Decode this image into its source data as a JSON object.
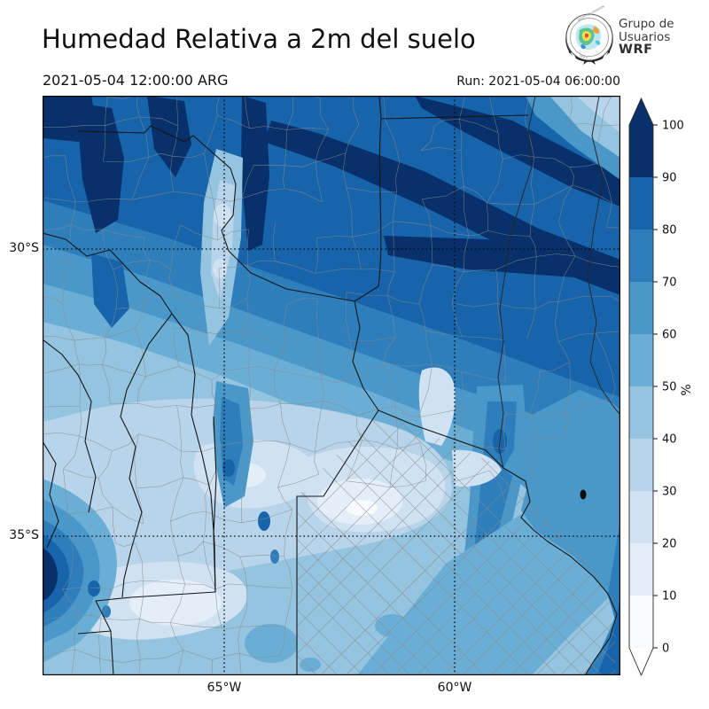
{
  "header": {
    "title": "Humedad Relativa a 2m del suelo",
    "valid_time": "2021-05-04 12:00:00 ARG",
    "run_label": "Run: 2021-05-04 06:00:00",
    "logo": {
      "org_line1": "Grupo de",
      "org_line2": "Usuarios",
      "org_line3": "WRF"
    }
  },
  "map": {
    "lat_ticks": [
      "30°S",
      "35°S"
    ],
    "lon_ticks": [
      "65°W",
      "60°W"
    ]
  },
  "colorbar": {
    "unit_label": "%",
    "tick_values": [
      "0",
      "10",
      "20",
      "30",
      "40",
      "50",
      "60",
      "70",
      "80",
      "90",
      "100"
    ],
    "band_colors": [
      "#f7fbff",
      "#e1edf8",
      "#d0e1f2",
      "#b7d4ea",
      "#94c4df",
      "#6aaed6",
      "#4a98c9",
      "#2e7ebc",
      "#1764ab",
      "#08306b"
    ],
    "over_color": "#08306b",
    "under_color": "#ffffff"
  }
}
